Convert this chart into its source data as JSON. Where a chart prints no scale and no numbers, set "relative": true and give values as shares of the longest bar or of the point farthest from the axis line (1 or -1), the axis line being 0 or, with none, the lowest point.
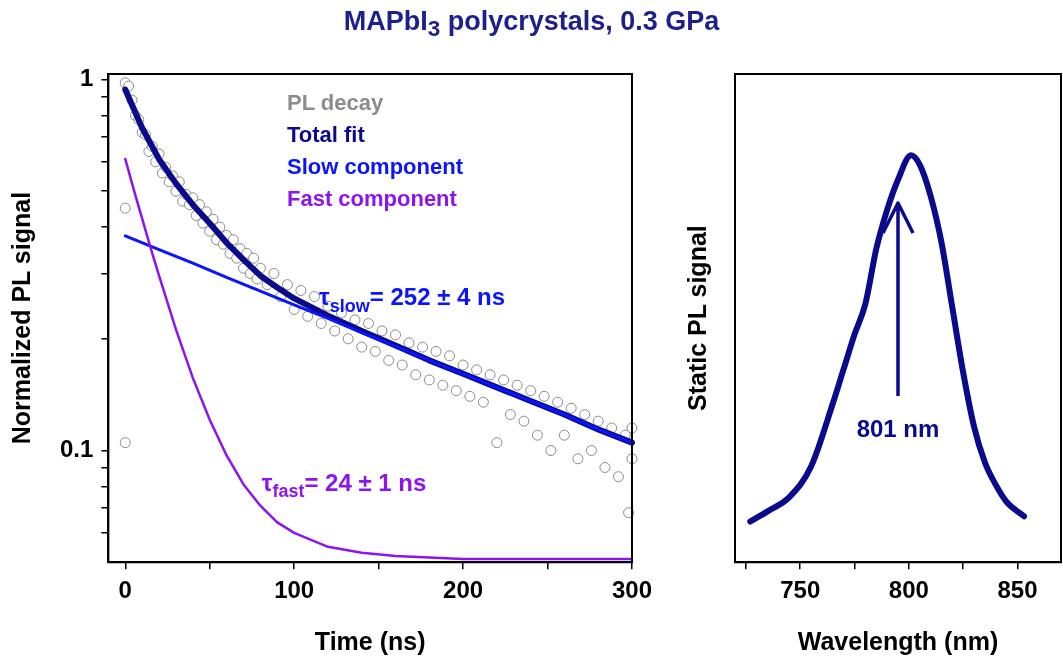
{
  "chart_data": [
    {
      "type": "scatter",
      "title": "MAPbI$_{3}$ polycrystals, 0.3 GPa",
      "xlabel": "Time (ns)",
      "ylabel": "Normalized PL signal",
      "log": "y",
      "grid": false,
      "legend": "top right",
      "xlim": [
        -10,
        300
      ],
      "xticks": [
        0,
        {
          "value": 50,
          "label": null
        },
        100,
        {
          "value": 150,
          "label": null
        },
        200,
        {
          "value": 250,
          "label": null
        },
        300
      ],
      "ylim": [
        0.05,
        1.035
      ],
      "yticks": [
        {
          "value": 0.06,
          "label": null
        },
        {
          "value": 0.07,
          "label": null
        },
        {
          "value": 0.08,
          "label": null
        },
        {
          "value": 0.09,
          "label": null
        },
        0.1,
        {
          "value": 0.2,
          "label": null
        },
        {
          "value": 0.3,
          "label": null
        },
        {
          "value": 0.4,
          "label": null
        },
        {
          "value": 0.5,
          "label": null
        },
        {
          "value": 0.6,
          "label": null
        },
        {
          "value": 0.7,
          "label": null
        },
        {
          "value": 0.8,
          "label": null
        },
        {
          "value": 0.9,
          "label": null
        },
        1
      ],
      "series": [
        {
          "name": "PL decay",
          "type": "scatter",
          "marker": "circle",
          "color": "#8c8c8c",
          "x": [
            0,
            0,
            0,
            2,
            4,
            6,
            8,
            10,
            12,
            14,
            16,
            18,
            20,
            22,
            24,
            26,
            28,
            30,
            32,
            34,
            36,
            38,
            40,
            42,
            44,
            46,
            48,
            50,
            52,
            54,
            56,
            58,
            60,
            62,
            64,
            66,
            68,
            70,
            72,
            74,
            76,
            78,
            80,
            84,
            88,
            92,
            96,
            100,
            104,
            108,
            112,
            116,
            120,
            124,
            128,
            132,
            136,
            140,
            144,
            148,
            152,
            156,
            160,
            164,
            168,
            172,
            176,
            180,
            184,
            188,
            192,
            196,
            200,
            204,
            208,
            212,
            216,
            220,
            224,
            228,
            232,
            236,
            240,
            244,
            248,
            252,
            256,
            260,
            264,
            268,
            272,
            276,
            280,
            284,
            288,
            292,
            296,
            298,
            300,
            300
          ],
          "values": [
            0.98,
            0.45,
            0.105,
            0.96,
            0.88,
            0.8,
            0.78,
            0.72,
            0.71,
            0.64,
            0.66,
            0.6,
            0.63,
            0.56,
            0.58,
            0.53,
            0.55,
            0.5,
            0.53,
            0.47,
            0.49,
            0.46,
            0.48,
            0.43,
            0.46,
            0.41,
            0.44,
            0.39,
            0.42,
            0.37,
            0.4,
            0.36,
            0.38,
            0.34,
            0.37,
            0.33,
            0.35,
            0.31,
            0.34,
            0.3,
            0.33,
            0.29,
            0.31,
            0.28,
            0.3,
            0.26,
            0.28,
            0.24,
            0.27,
            0.23,
            0.26,
            0.22,
            0.245,
            0.21,
            0.235,
            0.2,
            0.225,
            0.19,
            0.22,
            0.185,
            0.21,
            0.175,
            0.205,
            0.17,
            0.195,
            0.16,
            0.19,
            0.155,
            0.185,
            0.15,
            0.18,
            0.145,
            0.17,
            0.14,
            0.165,
            0.135,
            0.16,
            0.105,
            0.155,
            0.125,
            0.15,
            0.12,
            0.145,
            0.11,
            0.14,
            0.1,
            0.135,
            0.11,
            0.13,
            0.095,
            0.125,
            0.1,
            0.12,
            0.09,
            0.115,
            0.085,
            0.11,
            0.068,
            0.095,
            0.115
          ]
        },
        {
          "name": "Total fit",
          "type": "line",
          "color": "#0a0a8c",
          "x": [
            0,
            10,
            20,
            30,
            40,
            50,
            60,
            70,
            80,
            90,
            100,
            120,
            140,
            160,
            180,
            200,
            220,
            240,
            260,
            280,
            300
          ],
          "values": [
            0.94,
            0.74,
            0.61,
            0.525,
            0.46,
            0.41,
            0.363,
            0.327,
            0.296,
            0.275,
            0.257,
            0.231,
            0.21,
            0.192,
            0.175,
            0.161,
            0.148,
            0.136,
            0.125,
            0.114,
            0.105
          ]
        },
        {
          "name": "Slow component",
          "type": "line",
          "color": "#0a14ff",
          "x": [
            0,
            20,
            40,
            60,
            80,
            100,
            120,
            140,
            160,
            180,
            200,
            220,
            240,
            260,
            280,
            300
          ],
          "values": [
            0.379,
            0.348,
            0.32,
            0.293,
            0.269,
            0.247,
            0.227,
            0.208,
            0.191,
            0.175,
            0.161,
            0.148,
            0.136,
            0.125,
            0.114,
            0.105
          ]
        },
        {
          "name": "Fast component",
          "type": "line",
          "color": "#8c14f0",
          "x": [
            0,
            5,
            10,
            15,
            20,
            30,
            40,
            50,
            60,
            70,
            80,
            90,
            100,
            120,
            140,
            160,
            200,
            300
          ],
          "values": [
            0.611,
            0.506,
            0.422,
            0.352,
            0.296,
            0.212,
            0.157,
            0.121,
            0.097,
            0.081,
            0.071,
            0.064,
            0.06,
            0.055,
            0.053,
            0.052,
            0.051,
            0.051
          ]
        }
      ],
      "annotations": [
        "τ$_{slow}$= 252 ± 4 ns",
        "τ$_{fast}$= 24 ± 1 ns"
      ]
    },
    {
      "type": "line",
      "xlabel": "Wavelength (nm)",
      "ylabel": "Static PL signal",
      "relative": true,
      "grid": false,
      "tick_labels": "x",
      "xlim": [
        720,
        870
      ],
      "xticks": [
        {
          "value": 725,
          "label": null
        },
        750,
        {
          "value": 775,
          "label": null
        },
        800,
        {
          "value": 825,
          "label": null
        },
        850
      ],
      "series": [
        {
          "color": "#0a0a8c",
          "x": [
            727,
            735,
            745,
            755,
            765,
            770,
            775,
            780,
            785,
            790,
            795,
            801,
            805,
            810,
            815,
            820,
            825,
            830,
            835,
            840,
            845,
            853
          ],
          "values": [
            0.1,
            0.125,
            0.16,
            0.235,
            0.39,
            0.475,
            0.56,
            0.635,
            0.77,
            0.866,
            0.94,
            1,
            0.977,
            0.9,
            0.786,
            0.626,
            0.466,
            0.333,
            0.245,
            0.19,
            0.148,
            0.113
          ]
        }
      ],
      "annotations": [
        "801 nm"
      ]
    }
  ]
}
